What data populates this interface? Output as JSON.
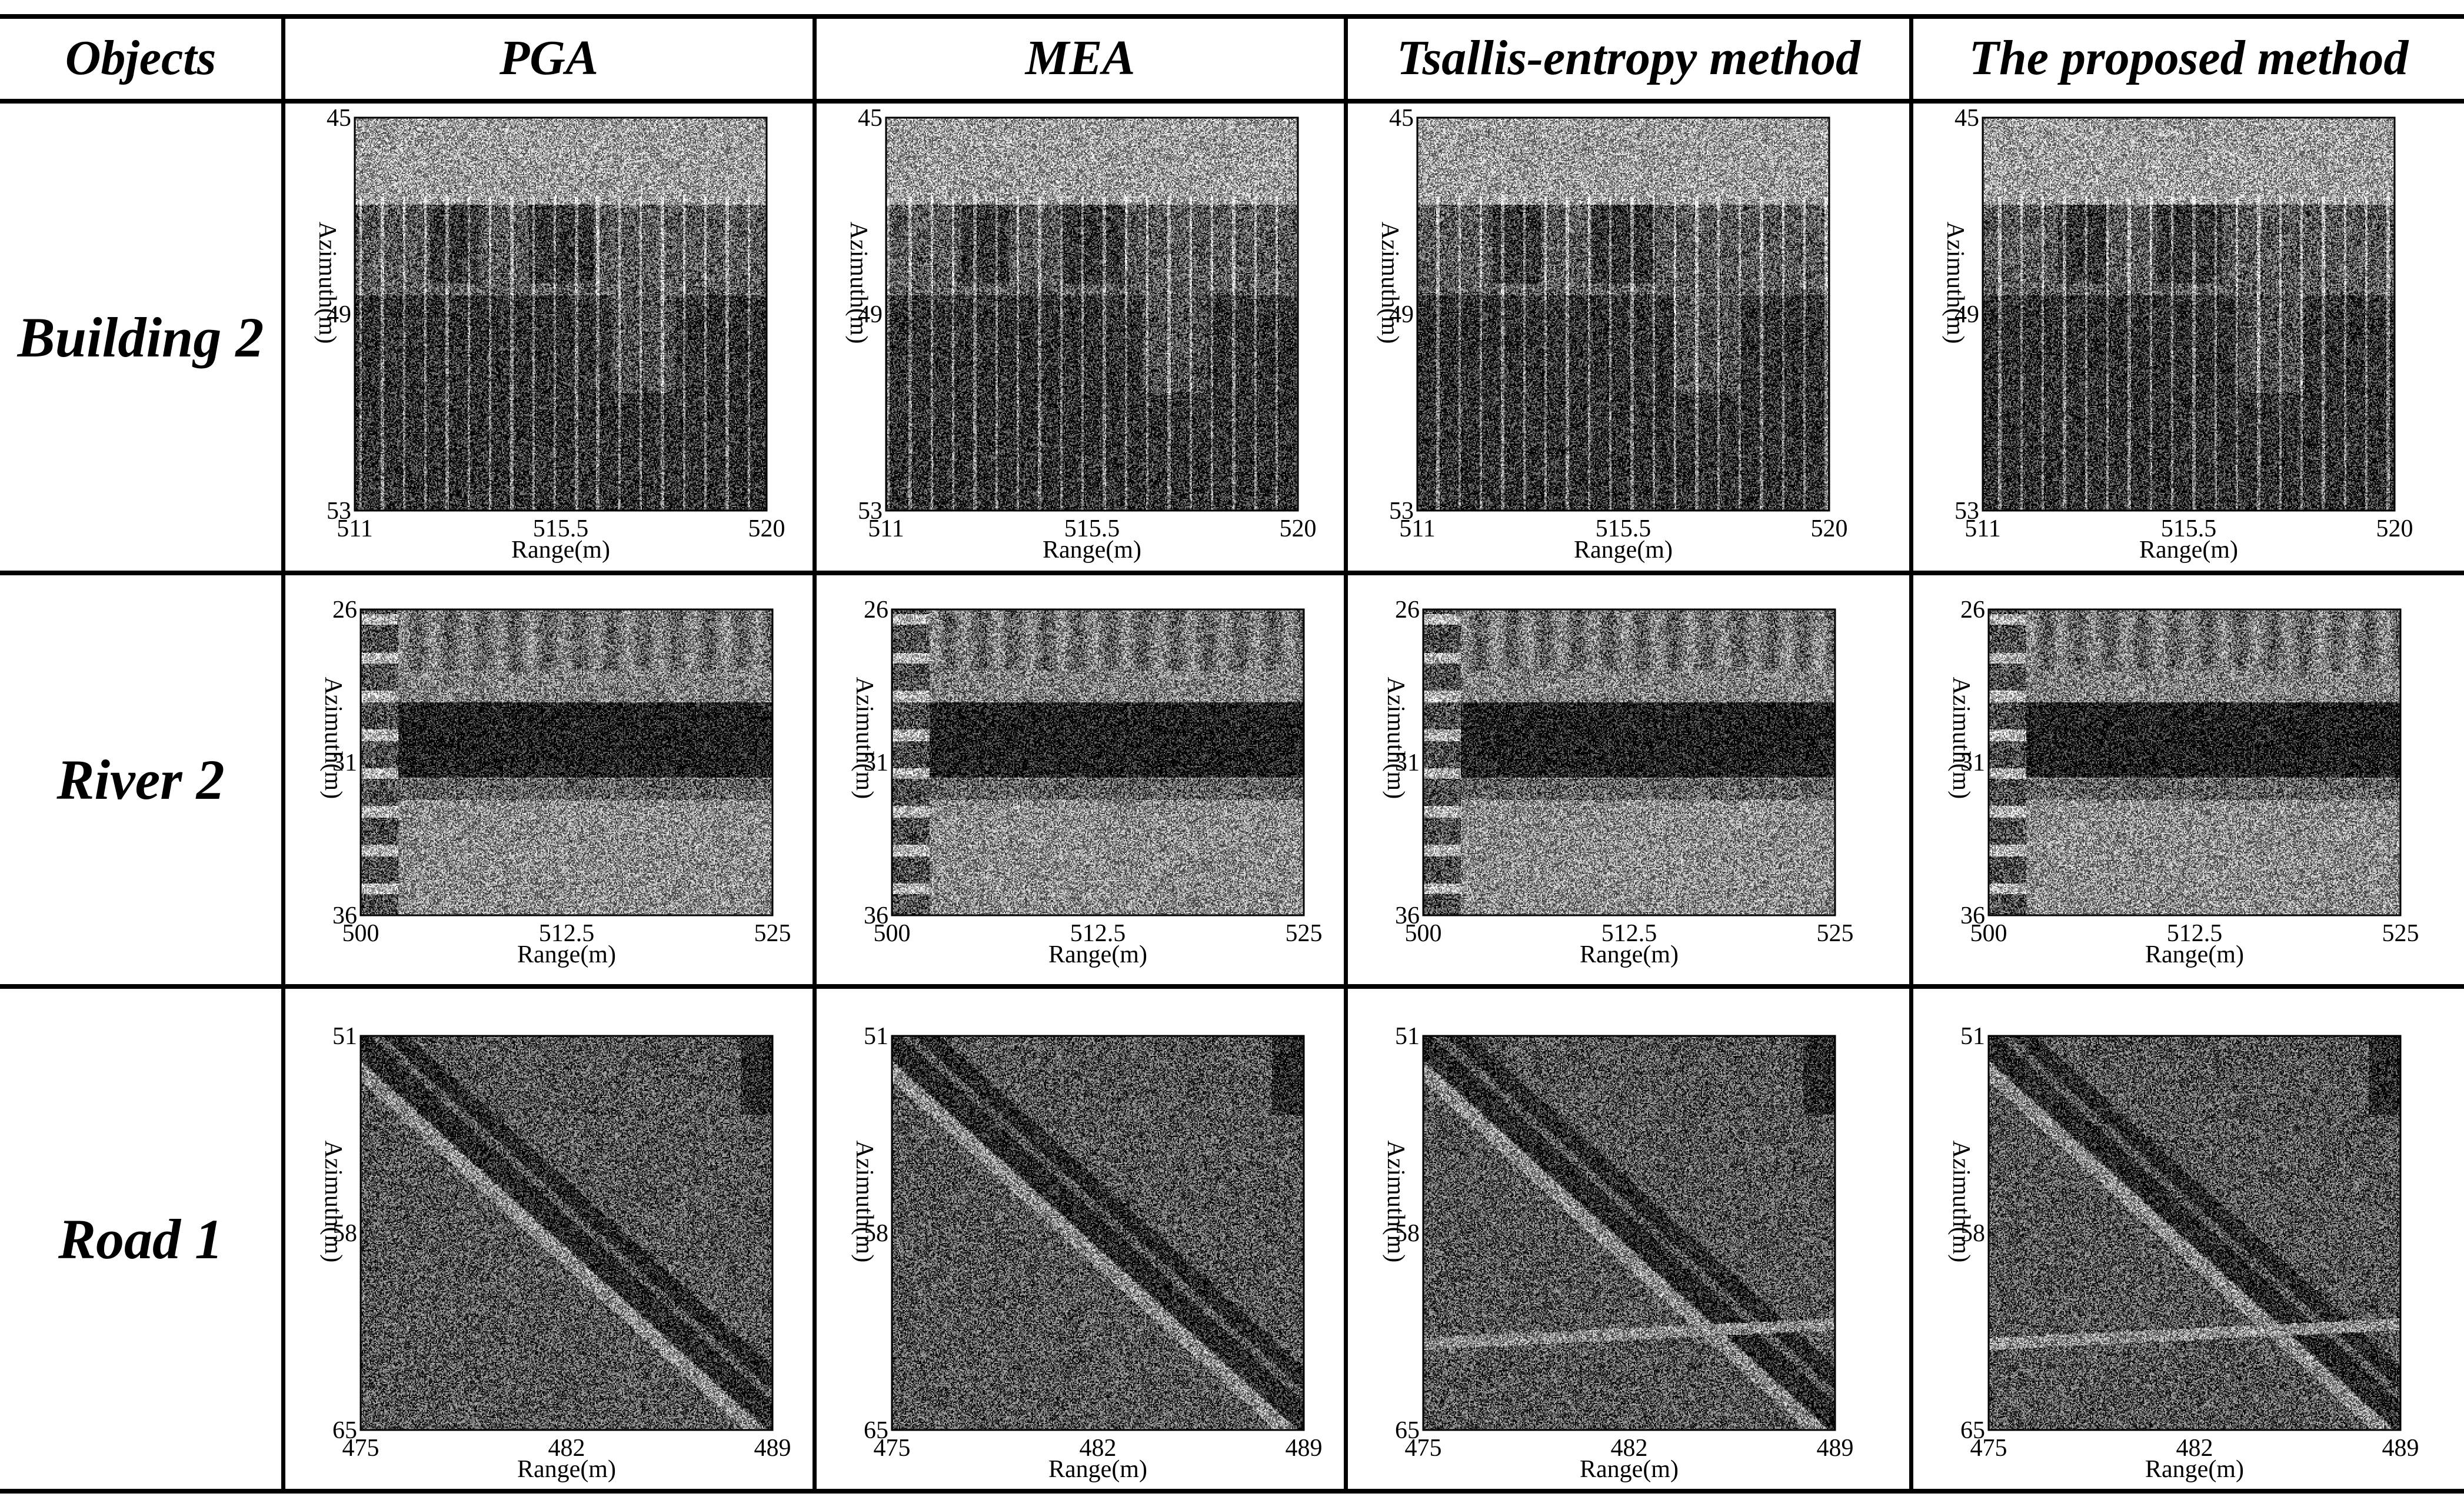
{
  "table": {
    "header": {
      "objects": "Objects",
      "methods": [
        "PGA",
        "MEA",
        "Tsallis-entropy method",
        "The proposed method"
      ]
    },
    "rows": [
      {
        "label": "Building 2",
        "y_ticks": [
          "45",
          "49",
          "53"
        ],
        "x_ticks": [
          "511",
          "515.5",
          "520"
        ],
        "xlabel": "Range(m)",
        "ylabel": "Azimuth(m)"
      },
      {
        "label": "River 2",
        "y_ticks": [
          "26",
          "31",
          "36"
        ],
        "x_ticks": [
          "500",
          "512.5",
          "525"
        ],
        "xlabel": "Range(m)",
        "ylabel": "Azimuth(m)"
      },
      {
        "label": "Road 1",
        "y_ticks": [
          "51",
          "58",
          "65"
        ],
        "x_ticks": [
          "475",
          "482",
          "489"
        ],
        "xlabel": "Range(m)",
        "ylabel": "Azimuth(m)"
      }
    ]
  },
  "images": {
    "scene_types": [
      "building",
      "river",
      "road"
    ],
    "colormap": "grayscale"
  }
}
